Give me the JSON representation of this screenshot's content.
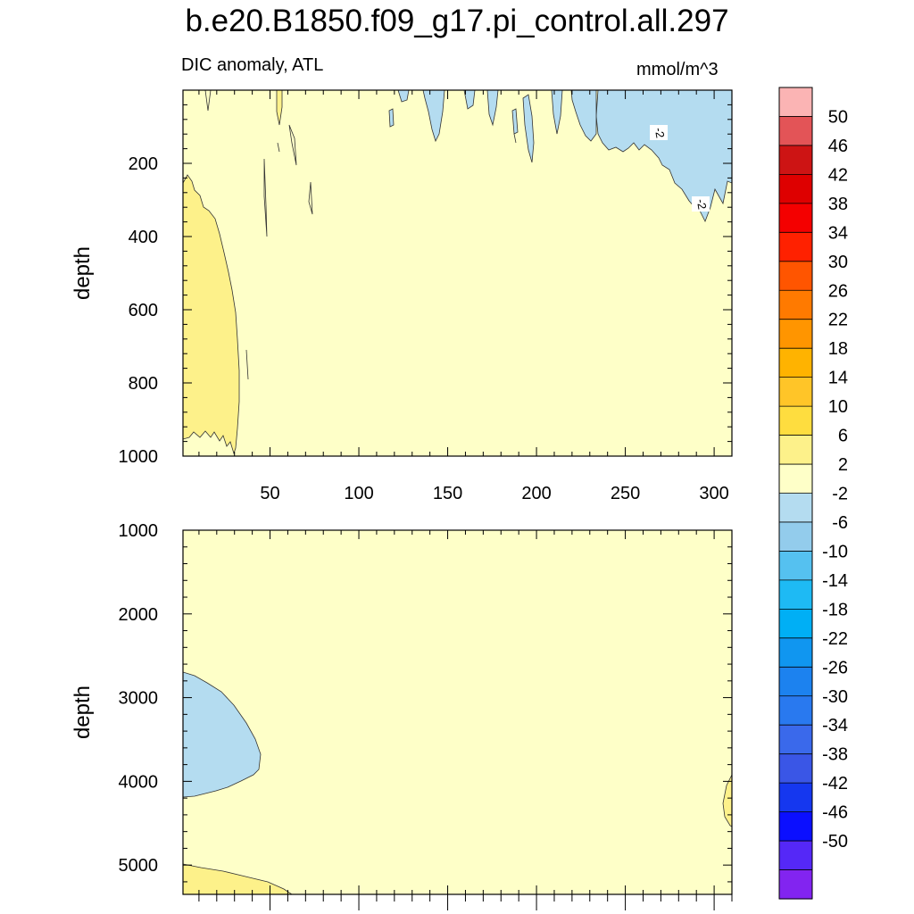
{
  "chart_data": [
    {
      "type": "contour",
      "title": "b.e20.B1850.f09_g17.pi_control.all.297",
      "subtitle_left": "DIC anomaly, ATL",
      "subtitle_right": "mmol/m^3",
      "panel": "upper",
      "xlabel": "",
      "ylabel": "depth",
      "xlim": [
        1,
        310
      ],
      "ylim": [
        1000,
        0
      ],
      "x_ticks": [
        50,
        100,
        150,
        200,
        250,
        300
      ],
      "y_ticks": [
        200,
        400,
        600,
        800,
        1000
      ],
      "background_level": "-2 to 2",
      "regions": [
        {
          "name": "positive-anomaly-west",
          "level": "2 to 6",
          "x_range": [
            1,
            33
          ],
          "depth_range": [
            230,
            990
          ]
        },
        {
          "name": "negative-anomaly-northeast",
          "level": "-6 to -2",
          "x_range": [
            120,
            310
          ],
          "depth_range": [
            0,
            340
          ]
        }
      ],
      "contour_labels": [
        "-2",
        "-2"
      ]
    },
    {
      "type": "contour",
      "panel": "lower",
      "xlabel": "",
      "ylabel": "depth",
      "xlim": [
        1,
        310
      ],
      "ylim": [
        5350,
        1000
      ],
      "y_ticks": [
        1000,
        2000,
        3000,
        4000,
        5000
      ],
      "background_level": "-2 to 2",
      "regions": [
        {
          "name": "negative-anomaly-west",
          "level": "-6 to -2",
          "x_range": [
            1,
            44
          ],
          "depth_range": [
            2700,
            4200
          ]
        },
        {
          "name": "positive-anomaly-bottom",
          "level": "2 to 6",
          "x_range": [
            1,
            62
          ],
          "depth_range": [
            5000,
            5350
          ]
        },
        {
          "name": "positive-anomaly-east",
          "level": "2 to 6",
          "x_range": [
            306,
            310
          ],
          "depth_range": [
            3900,
            4550
          ]
        }
      ]
    }
  ],
  "colorbar": {
    "labels": [
      "50",
      "46",
      "42",
      "38",
      "34",
      "30",
      "26",
      "22",
      "18",
      "14",
      "10",
      "6",
      "2",
      "-2",
      "-6",
      "-10",
      "-14",
      "-18",
      "-22",
      "-26",
      "-30",
      "-34",
      "-38",
      "-42",
      "-46",
      "-50"
    ],
    "colors": [
      "#fbb4b4",
      "#e35457",
      "#cd1414",
      "#de0000",
      "#f40000",
      "#ff2100",
      "#ff5500",
      "#ff7a00",
      "#ff9500",
      "#ffb300",
      "#ffc528",
      "#fedd3f",
      "#fdf18a",
      "#feffc8",
      "#b4dcf0",
      "#93ccec",
      "#55c1f0",
      "#1ebaf4",
      "#00aff5",
      "#1096f0",
      "#1c82ef",
      "#2979ef",
      "#3a69eb",
      "#3a56e6",
      "#1537ef",
      "#0b0fff",
      "#5528f7",
      "#8224f0"
    ]
  }
}
